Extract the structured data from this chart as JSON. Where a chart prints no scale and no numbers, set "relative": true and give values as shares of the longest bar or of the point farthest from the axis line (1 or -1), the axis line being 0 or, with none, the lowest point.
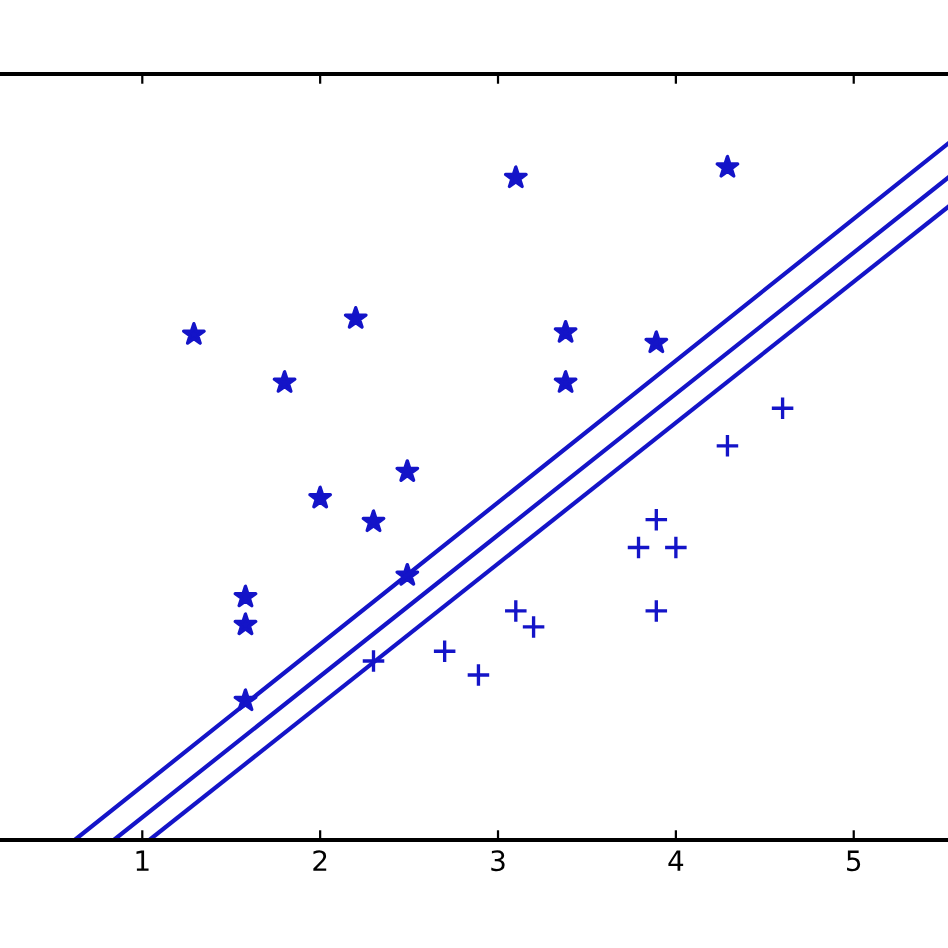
{
  "chart_data": {
    "type": "scatter",
    "relative": true,
    "xlim": [
      0.2,
      5.53
    ],
    "xticks": [
      1,
      2,
      3,
      4,
      5
    ],
    "tick_labels": "x",
    "grid": false,
    "legend": false,
    "series": [
      {
        "marker": "star",
        "color": "#1414c8",
        "x": [
          1.29,
          2.2,
          1.8,
          2.0,
          2.3,
          2.49,
          1.58,
          1.58,
          2.49,
          1.58,
          3.1,
          4.29,
          3.38,
          3.38,
          3.89
        ],
        "values": [
          0.726,
          0.749,
          0.657,
          0.491,
          0.457,
          0.529,
          0.349,
          0.309,
          0.38,
          0.2,
          0.951,
          0.966,
          0.729,
          0.657,
          0.714
        ]
      },
      {
        "marker": "cross",
        "color": "#1414c8",
        "x": [
          2.3,
          2.7,
          2.89,
          3.1,
          3.2,
          3.89,
          3.79,
          4.0,
          3.89,
          4.29,
          4.6
        ],
        "values": [
          0.257,
          0.271,
          0.237,
          0.329,
          0.306,
          0.329,
          0.42,
          0.42,
          0.46,
          0.566,
          0.62
        ]
      },
      {
        "type": "line",
        "line_style": "solid",
        "color": "#1414c8",
        "x": [
          0.62,
          5.53
        ],
        "values": [
          0,
          1.0
        ]
      },
      {
        "type": "line",
        "line_style": "solid",
        "color": "#1414c8",
        "x": [
          0.84,
          5.53
        ],
        "values": [
          0,
          0.951
        ]
      },
      {
        "type": "line",
        "line_style": "solid",
        "color": "#1414c8",
        "x": [
          1.04,
          5.53
        ],
        "values": [
          0,
          0.909
        ]
      }
    ]
  }
}
